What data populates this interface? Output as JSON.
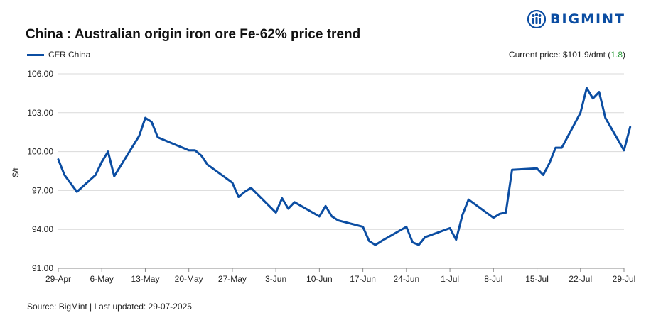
{
  "title": "China : Australian origin iron ore Fe-62% price trend",
  "brand": {
    "name": "BIGMINT",
    "color": "#0b4da2"
  },
  "current_price": {
    "label": "Current price: $101.9/dmt (",
    "change": "1.8",
    "suffix": ")"
  },
  "source": "Source: BigMint | Last updated: 29-07-2025",
  "chart_data": {
    "type": "line",
    "title": "China : Australian origin iron ore Fe-62% price trend",
    "xlabel": "",
    "ylabel": "$/t",
    "ylim": [
      91,
      107
    ],
    "y_ticks": [
      "106.00",
      "103.00",
      "100.00",
      "97.00",
      "94.00",
      "91.00"
    ],
    "y_tick_values": [
      106,
      103,
      100,
      97,
      94,
      91
    ],
    "x_ticks": [
      "29-Apr",
      "6-May",
      "13-May",
      "20-May",
      "27-May",
      "3-Jun",
      "10-Jun",
      "17-Jun",
      "24-Jun",
      "1-Jul",
      "8-Jul",
      "15-Jul",
      "22-Jul",
      "29-Jul"
    ],
    "x_tick_days": [
      0,
      7,
      14,
      21,
      28,
      35,
      42,
      49,
      56,
      63,
      70,
      77,
      84,
      91
    ],
    "grid": true,
    "legend_position": "top-left",
    "series": [
      {
        "name": "CFR China",
        "color": "#0b4da2",
        "x": [
          0,
          1,
          3,
          6,
          7,
          8,
          9,
          13,
          14,
          15,
          16,
          21,
          22,
          23,
          24,
          28,
          29,
          30,
          31,
          35,
          36,
          37,
          38,
          42,
          43,
          44,
          45,
          49,
          50,
          51,
          52,
          56,
          57,
          58,
          59,
          63,
          64,
          65,
          66,
          70,
          71,
          72,
          73,
          77,
          78,
          79,
          80,
          81,
          84,
          85,
          86,
          87,
          88,
          91,
          92
        ],
        "y": [
          99.4,
          98.2,
          96.9,
          98.2,
          99.2,
          100.0,
          98.1,
          101.2,
          102.6,
          102.3,
          101.1,
          100.1,
          100.1,
          99.7,
          99.0,
          97.6,
          96.5,
          96.9,
          97.2,
          95.3,
          96.4,
          95.6,
          96.1,
          95.0,
          95.8,
          95.0,
          94.7,
          94.2,
          93.1,
          92.8,
          93.1,
          94.2,
          93.0,
          92.8,
          93.4,
          94.1,
          93.2,
          95.1,
          96.3,
          94.9,
          95.2,
          95.3,
          98.6,
          98.7,
          98.2,
          99.1,
          100.3,
          100.3,
          103.0,
          104.9,
          104.1,
          104.6,
          102.6,
          100.1,
          101.9
        ]
      }
    ]
  }
}
